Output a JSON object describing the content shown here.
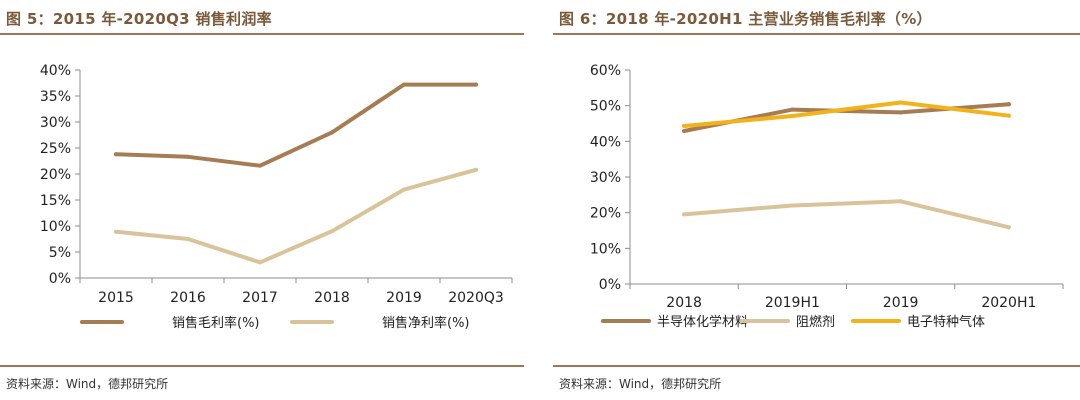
{
  "colors": {
    "accent": "#9a7a55",
    "title": "#7a5a3a"
  },
  "chart_data": [
    {
      "type": "line",
      "title": "图 5：2015 年-2020Q3 销售利润率",
      "source": "资料来源：Wind，德邦研究所",
      "categories": [
        "2015",
        "2016",
        "2017",
        "2018",
        "2019",
        "2020Q3"
      ],
      "yticks": [
        "40%",
        "35%",
        "30%",
        "25%",
        "20%",
        "15%",
        "10%",
        "5%",
        "0%"
      ],
      "ylim": [
        0,
        40
      ],
      "grid": false,
      "legend_position": "bottom",
      "series": [
        {
          "name": "销售毛利率(%)",
          "color": "#a67c52",
          "values": [
            23.8,
            23.3,
            21.6,
            28,
            37.2,
            37.2
          ]
        },
        {
          "name": "销售净利率(%)",
          "color": "#d9c39a",
          "values": [
            8.9,
            7.5,
            3,
            9,
            17,
            20.8
          ]
        }
      ]
    },
    {
      "type": "line",
      "title": "图 6：2018 年-2020H1 主营业务销售毛利率（%）",
      "source": "资料来源：Wind，德邦研究所",
      "categories": [
        "2018",
        "2019H1",
        "2019",
        "2020H1"
      ],
      "yticks": [
        "60%",
        "50%",
        "40%",
        "30%",
        "20%",
        "10%",
        "0%"
      ],
      "ylim": [
        0,
        60
      ],
      "grid": false,
      "legend_position": "bottom",
      "series": [
        {
          "name": "半导体化学材料",
          "color": "#a67c52",
          "values": [
            42.9,
            48.9,
            48.1,
            50.4
          ]
        },
        {
          "name": "阻燃剂",
          "color": "#d9c39a",
          "values": [
            19.5,
            22,
            23.2,
            15.9
          ]
        },
        {
          "name": "电子特种气体",
          "color": "#f2b21c",
          "values": [
            44.3,
            47.1,
            50.9,
            47.2
          ]
        }
      ]
    }
  ]
}
